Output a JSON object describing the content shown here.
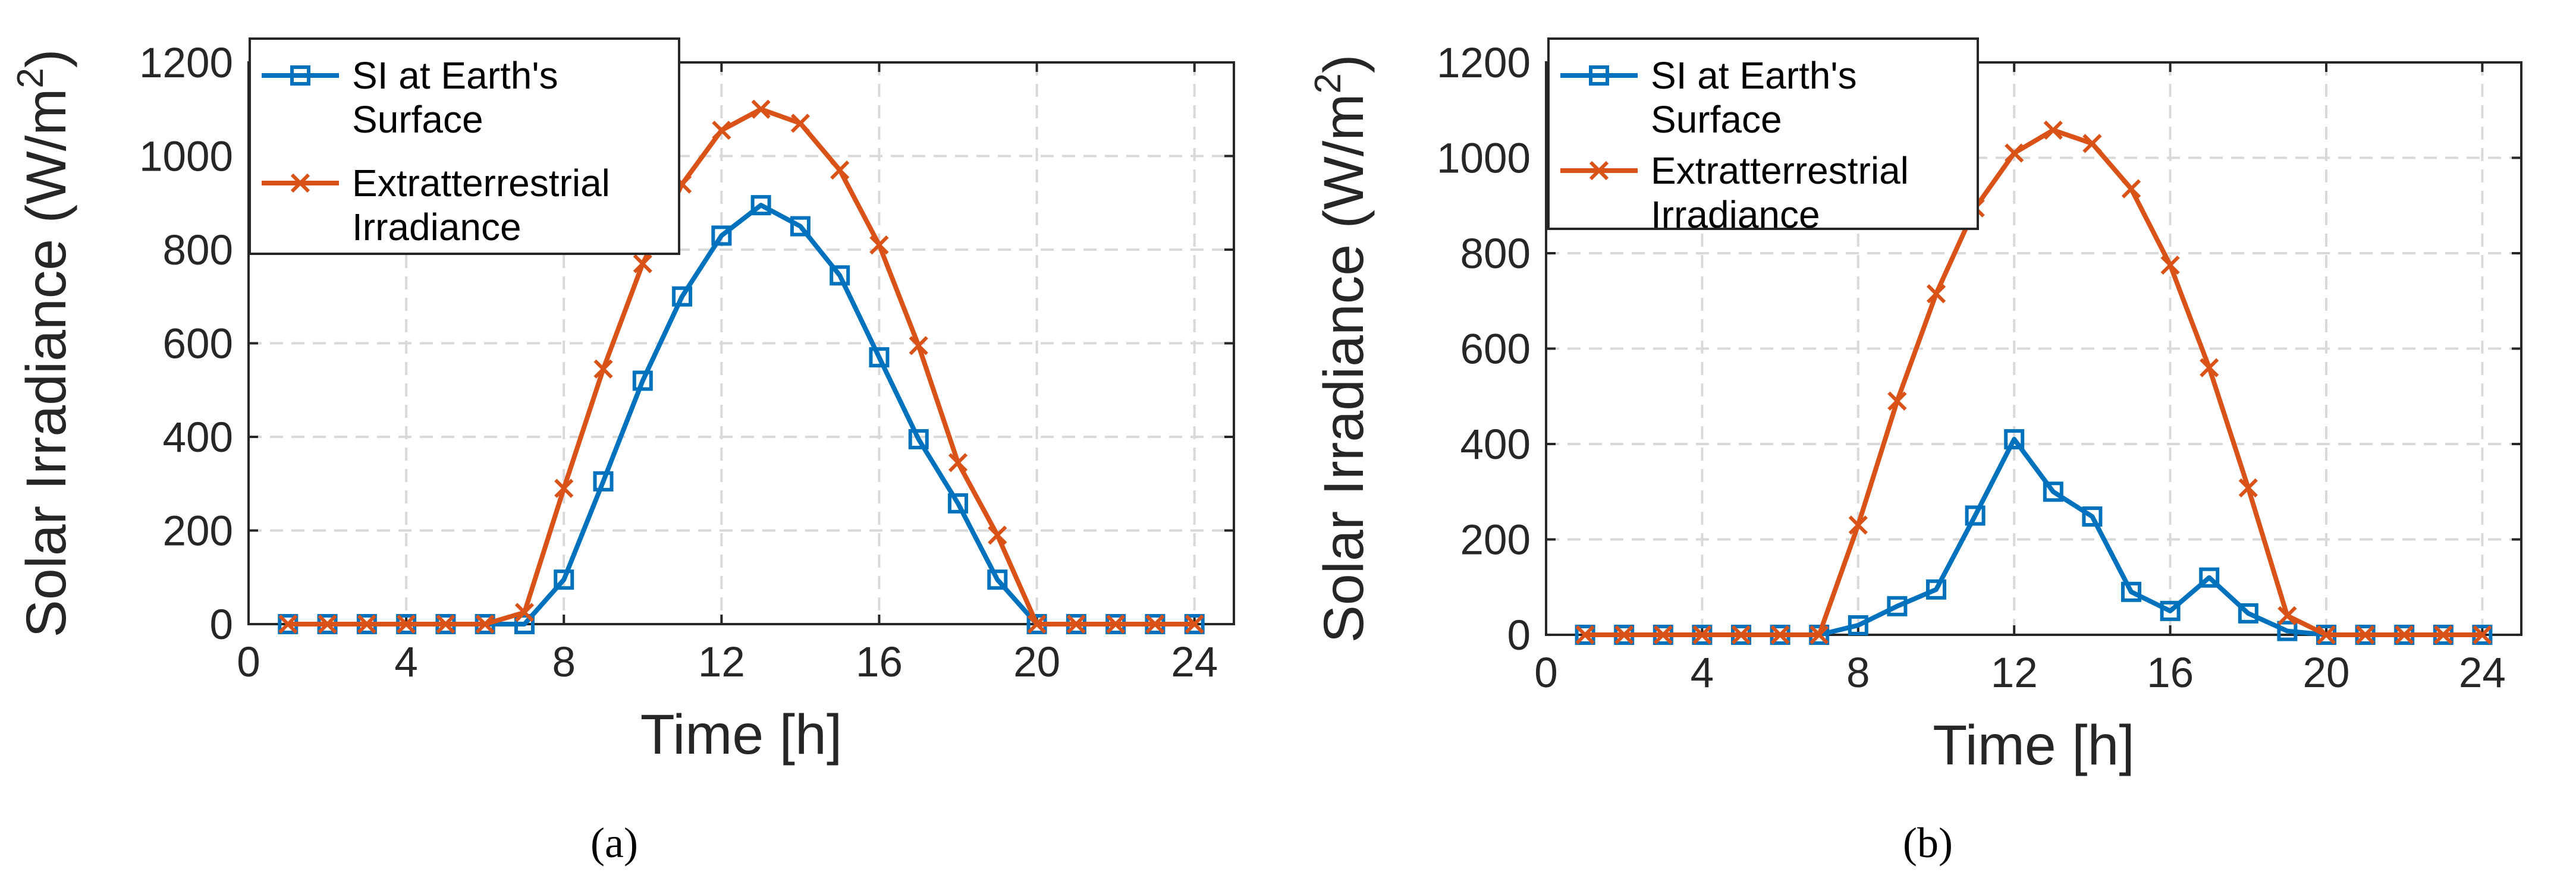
{
  "chart_data": [
    {
      "type": "line",
      "caption": "(a)",
      "xlabel": "Time [h]",
      "ylabel": "Solar Irradiance (W/m²)",
      "ylabel_main": "Solar Irradiance (W/m",
      "ylabel_sup": "2",
      "ylabel_close": ")",
      "xlim": [
        0,
        25
      ],
      "ylim": [
        0,
        1200
      ],
      "xticks": [
        0,
        4,
        8,
        12,
        16,
        20,
        24
      ],
      "yticks": [
        0,
        200,
        400,
        600,
        800,
        1000,
        1200
      ],
      "grid": true,
      "legend_position": "top-left",
      "x": [
        1,
        2,
        3,
        4,
        5,
        6,
        7,
        8,
        9,
        10,
        11,
        12,
        13,
        14,
        15,
        16,
        17,
        18,
        19,
        20,
        21,
        22,
        23,
        24
      ],
      "series": [
        {
          "name": "SI at  Earth's Surface",
          "legend_lines": [
            "SI at  Earth's",
            "Surface"
          ],
          "color": "#0072BD",
          "marker": "square",
          "values": [
            0,
            0,
            0,
            0,
            0,
            0,
            0,
            95,
            305,
            520,
            700,
            830,
            895,
            850,
            745,
            570,
            395,
            258,
            95,
            0,
            0,
            0,
            0,
            0
          ]
        },
        {
          "name": "Extratterrestrial Irradiance",
          "legend_lines": [
            "Extratterrestrial",
            "Irradiance"
          ],
          "color": "#D95319",
          "marker": "x",
          "values": [
            0,
            0,
            0,
            0,
            0,
            0,
            25,
            290,
            545,
            770,
            940,
            1055,
            1100,
            1070,
            970,
            810,
            595,
            345,
            190,
            0,
            0,
            0,
            0,
            0
          ]
        }
      ]
    },
    {
      "type": "line",
      "caption": "(b)",
      "xlabel": "Time [h]",
      "ylabel": "Solar Irradiance (W/m²)",
      "ylabel_main": "Solar Irradiance (W/m",
      "ylabel_sup": "2",
      "ylabel_close": ")",
      "xlim": [
        0,
        25
      ],
      "ylim": [
        0,
        1200
      ],
      "xticks": [
        0,
        4,
        8,
        12,
        16,
        20,
        24
      ],
      "yticks": [
        0,
        200,
        400,
        600,
        800,
        1000,
        1200
      ],
      "grid": true,
      "legend_position": "top-left",
      "x": [
        1,
        2,
        3,
        4,
        5,
        6,
        7,
        8,
        9,
        10,
        11,
        12,
        13,
        14,
        15,
        16,
        17,
        18,
        19,
        20,
        21,
        22,
        23,
        24
      ],
      "series": [
        {
          "name": "SI at  Earth's Surface",
          "legend_lines": [
            "SI at  Earth's",
            "Surface"
          ],
          "color": "#0072BD",
          "marker": "square",
          "values": [
            0,
            0,
            0,
            0,
            0,
            0,
            0,
            20,
            60,
            95,
            250,
            410,
            300,
            248,
            90,
            50,
            120,
            45,
            8,
            0,
            0,
            0,
            0,
            0
          ]
        },
        {
          "name": "Extratterrestrial Irradiance",
          "legend_lines": [
            "Extratterrestrial",
            "Irradiance"
          ],
          "color": "#D95319",
          "marker": "x",
          "values": [
            0,
            0,
            0,
            0,
            0,
            0,
            0,
            230,
            490,
            715,
            895,
            1010,
            1058,
            1030,
            935,
            775,
            560,
            308,
            40,
            0,
            0,
            0,
            0,
            0
          ]
        }
      ]
    }
  ]
}
